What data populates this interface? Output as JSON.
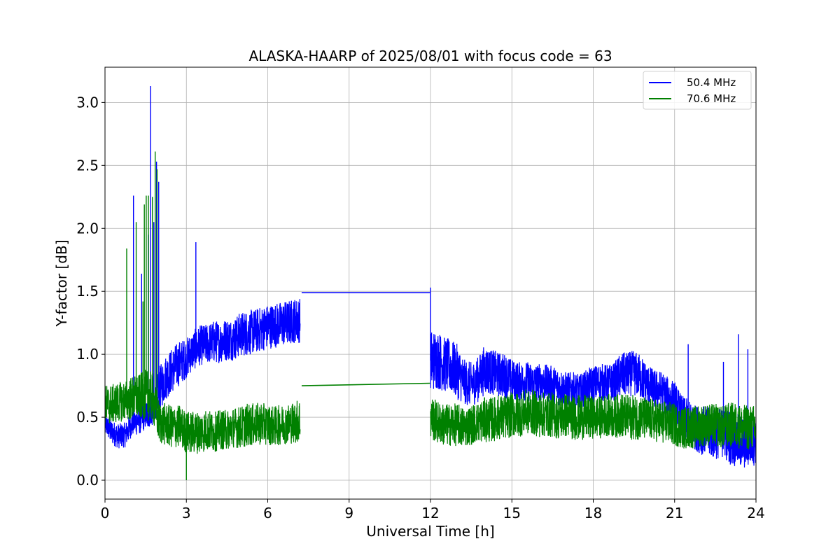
{
  "chart_data": {
    "type": "line",
    "title": "ALASKA-HAARP of 2025/08/01 with focus code = 63",
    "xlabel": "Universal Time [h]",
    "ylabel": "Y-factor [dB]",
    "xlim": [
      0,
      24
    ],
    "ylim": [
      -0.15,
      3.28
    ],
    "xticks": [
      0,
      3,
      6,
      9,
      12,
      15,
      18,
      21,
      24
    ],
    "xtick_labels": [
      "0",
      "3",
      "6",
      "9",
      "12",
      "15",
      "18",
      "21",
      "24"
    ],
    "yticks": [
      0.0,
      0.5,
      1.0,
      1.5,
      2.0,
      2.5,
      3.0
    ],
    "ytick_labels": [
      "0.0",
      "0.5",
      "1.0",
      "1.5",
      "2.0",
      "2.5",
      "3.0"
    ],
    "grid": true,
    "legend": "top-right",
    "series": [
      {
        "name": "50.4 MHz",
        "color": "#0000ff",
        "x": [
          0.0,
          0.25,
          0.5,
          0.75,
          1.0,
          1.25,
          1.5,
          1.75,
          2.0,
          2.25,
          2.5,
          2.75,
          3.0,
          3.25,
          3.5,
          3.75,
          4.0,
          4.25,
          4.5,
          4.75,
          5.0,
          5.25,
          5.5,
          5.75,
          6.0,
          6.25,
          6.5,
          6.75,
          7.0,
          7.2,
          12.0,
          12.25,
          12.5,
          12.75,
          13.0,
          13.25,
          13.5,
          13.75,
          14.0,
          14.25,
          14.5,
          14.75,
          15.0,
          15.25,
          15.5,
          15.75,
          16.0,
          16.25,
          16.5,
          16.75,
          17.0,
          17.25,
          17.5,
          17.75,
          18.0,
          18.25,
          18.5,
          18.75,
          19.0,
          19.25,
          19.5,
          19.75,
          20.0,
          20.25,
          20.5,
          20.75,
          21.0,
          21.25,
          21.5,
          21.75,
          22.0,
          22.25,
          22.5,
          22.75,
          23.0,
          23.25,
          23.5,
          23.75,
          24.0
        ],
        "values": [
          0.45,
          0.38,
          0.35,
          0.36,
          0.45,
          0.48,
          0.52,
          0.55,
          0.72,
          0.82,
          0.88,
          0.93,
          0.97,
          1.03,
          1.07,
          1.08,
          1.1,
          1.1,
          1.12,
          1.12,
          1.16,
          1.17,
          1.18,
          1.2,
          1.22,
          1.23,
          1.24,
          1.25,
          1.27,
          1.27,
          0.95,
          0.96,
          0.92,
          0.9,
          0.86,
          0.78,
          0.76,
          0.8,
          0.88,
          0.86,
          0.84,
          0.83,
          0.8,
          0.78,
          0.79,
          0.77,
          0.78,
          0.77,
          0.76,
          0.74,
          0.72,
          0.72,
          0.7,
          0.74,
          0.76,
          0.78,
          0.77,
          0.78,
          0.83,
          0.84,
          0.85,
          0.82,
          0.76,
          0.72,
          0.71,
          0.66,
          0.63,
          0.5,
          0.46,
          0.42,
          0.4,
          0.38,
          0.36,
          0.38,
          0.35,
          0.32,
          0.3,
          0.32,
          0.32
        ],
        "noise": [
          0.09,
          0.1,
          0.1,
          0.1,
          0.1,
          0.12,
          0.12,
          0.12,
          0.18,
          0.18,
          0.18,
          0.18,
          0.16,
          0.16,
          0.16,
          0.16,
          0.17,
          0.17,
          0.17,
          0.17,
          0.18,
          0.18,
          0.18,
          0.18,
          0.18,
          0.18,
          0.18,
          0.18,
          0.18,
          0.18,
          0.25,
          0.24,
          0.22,
          0.22,
          0.22,
          0.18,
          0.18,
          0.18,
          0.2,
          0.18,
          0.18,
          0.18,
          0.16,
          0.16,
          0.16,
          0.16,
          0.15,
          0.15,
          0.15,
          0.15,
          0.14,
          0.14,
          0.14,
          0.14,
          0.15,
          0.15,
          0.15,
          0.15,
          0.18,
          0.18,
          0.18,
          0.18,
          0.16,
          0.16,
          0.16,
          0.16,
          0.16,
          0.18,
          0.18,
          0.18,
          0.2,
          0.2,
          0.2,
          0.2,
          0.22,
          0.22,
          0.22,
          0.22,
          0.2
        ],
        "spikes": [
          [
            1.05,
            2.26
          ],
          [
            1.35,
            1.64
          ],
          [
            1.6,
            1.95
          ],
          [
            1.68,
            3.13
          ],
          [
            1.8,
            2.05
          ],
          [
            1.9,
            2.53
          ],
          [
            1.98,
            2.37
          ],
          [
            3.35,
            1.89
          ],
          [
            12.0,
            1.53
          ],
          [
            21.5,
            1.08
          ],
          [
            22.8,
            0.94
          ],
          [
            23.35,
            1.16
          ],
          [
            23.7,
            1.04
          ]
        ],
        "gap": {
          "from": [
            7.25,
            1.49
          ],
          "to": [
            11.98,
            1.49
          ]
        }
      },
      {
        "name": "70.6 MHz",
        "color": "#008000",
        "x": [
          0.0,
          0.25,
          0.5,
          0.75,
          1.0,
          1.25,
          1.5,
          1.75,
          2.0,
          2.25,
          2.5,
          2.75,
          3.0,
          3.25,
          3.5,
          3.75,
          4.0,
          4.25,
          4.5,
          4.75,
          5.0,
          5.25,
          5.5,
          5.75,
          6.0,
          6.25,
          6.5,
          6.75,
          7.0,
          7.2,
          12.0,
          12.25,
          12.5,
          12.75,
          13.0,
          13.25,
          13.5,
          13.75,
          14.0,
          14.25,
          14.5,
          14.75,
          15.0,
          15.25,
          15.5,
          15.75,
          16.0,
          16.25,
          16.5,
          16.75,
          17.0,
          17.25,
          17.5,
          17.75,
          18.0,
          18.25,
          18.5,
          18.75,
          19.0,
          19.25,
          19.5,
          19.75,
          20.0,
          20.25,
          20.5,
          20.75,
          21.0,
          21.25,
          21.5,
          21.75,
          22.0,
          22.25,
          22.5,
          22.75,
          23.0,
          23.25,
          23.5,
          23.75,
          24.0
        ],
        "values": [
          0.6,
          0.6,
          0.62,
          0.63,
          0.65,
          0.66,
          0.68,
          0.66,
          0.46,
          0.44,
          0.42,
          0.43,
          0.38,
          0.38,
          0.38,
          0.4,
          0.38,
          0.4,
          0.4,
          0.42,
          0.42,
          0.44,
          0.44,
          0.45,
          0.44,
          0.43,
          0.44,
          0.45,
          0.46,
          0.48,
          0.5,
          0.46,
          0.44,
          0.44,
          0.44,
          0.42,
          0.44,
          0.46,
          0.48,
          0.48,
          0.5,
          0.5,
          0.52,
          0.52,
          0.54,
          0.54,
          0.52,
          0.52,
          0.52,
          0.5,
          0.52,
          0.5,
          0.5,
          0.5,
          0.5,
          0.5,
          0.52,
          0.5,
          0.52,
          0.5,
          0.5,
          0.5,
          0.48,
          0.48,
          0.46,
          0.46,
          0.44,
          0.42,
          0.42,
          0.42,
          0.44,
          0.44,
          0.44,
          0.42,
          0.44,
          0.44,
          0.42,
          0.42,
          0.42
        ],
        "noise": [
          0.16,
          0.16,
          0.16,
          0.16,
          0.18,
          0.18,
          0.2,
          0.2,
          0.17,
          0.17,
          0.17,
          0.17,
          0.17,
          0.17,
          0.17,
          0.17,
          0.16,
          0.16,
          0.16,
          0.16,
          0.17,
          0.17,
          0.17,
          0.17,
          0.16,
          0.16,
          0.16,
          0.16,
          0.17,
          0.18,
          0.18,
          0.17,
          0.17,
          0.17,
          0.17,
          0.16,
          0.16,
          0.16,
          0.18,
          0.18,
          0.18,
          0.18,
          0.18,
          0.18,
          0.18,
          0.18,
          0.18,
          0.18,
          0.18,
          0.18,
          0.18,
          0.18,
          0.18,
          0.18,
          0.17,
          0.17,
          0.17,
          0.17,
          0.18,
          0.18,
          0.18,
          0.18,
          0.17,
          0.17,
          0.17,
          0.17,
          0.17,
          0.17,
          0.17,
          0.17,
          0.17,
          0.17,
          0.17,
          0.17,
          0.18,
          0.18,
          0.18,
          0.18,
          0.18
        ],
        "spikes": [
          [
            0.8,
            1.84
          ],
          [
            1.15,
            2.05
          ],
          [
            1.4,
            1.42
          ],
          [
            1.45,
            2.19
          ],
          [
            1.52,
            2.26
          ],
          [
            1.6,
            2.26
          ],
          [
            1.75,
            2.25
          ],
          [
            1.85,
            2.61
          ],
          [
            1.92,
            2.47
          ],
          [
            3.0,
            0.0
          ]
        ],
        "gap": {
          "from": [
            7.25,
            0.75
          ],
          "to": [
            11.98,
            0.77
          ]
        }
      }
    ]
  }
}
